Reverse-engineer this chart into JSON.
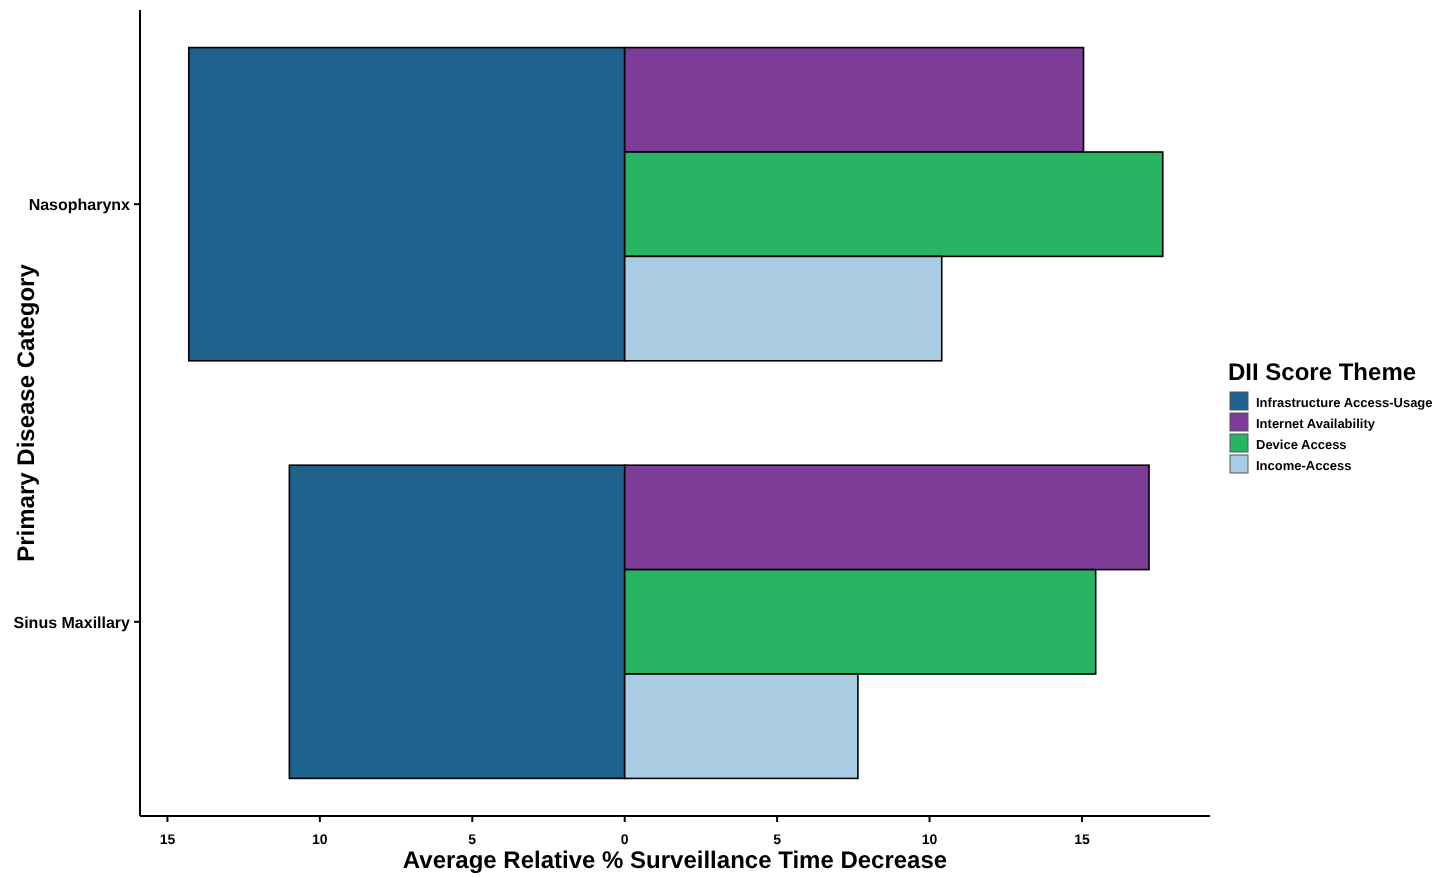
{
  "chart_data": {
    "type": "bar",
    "orientation": "horizontal",
    "xlabel": "Average Relative % Surveillance Time Decrease",
    "ylabel": "Primary Disease Category",
    "legend_title": "DII Score Theme",
    "legend": "right",
    "grid": false,
    "categories": [
      "Nasopharynx",
      "Sinus Maxillary"
    ],
    "xlim": [
      -15.9,
      19.2
    ],
    "xticks": [
      {
        "value": -15,
        "label": "15"
      },
      {
        "value": -10,
        "label": "10"
      },
      {
        "value": -5,
        "label": "5"
      },
      0,
      5,
      10,
      15
    ],
    "series": [
      {
        "name": "Infrastructure Access-Usage",
        "color": "#1f618d",
        "values": [
          -14.3,
          -11.0
        ]
      },
      {
        "name": "Internet Availability",
        "color": "#7d3c98",
        "values": [
          15.05,
          17.2
        ]
      },
      {
        "name": "Device Access",
        "color": "#28b463",
        "values": [
          17.65,
          15.45
        ]
      },
      {
        "name": "Income-Access",
        "color": "#a9cce3",
        "values": [
          10.4,
          7.65
        ]
      }
    ]
  }
}
